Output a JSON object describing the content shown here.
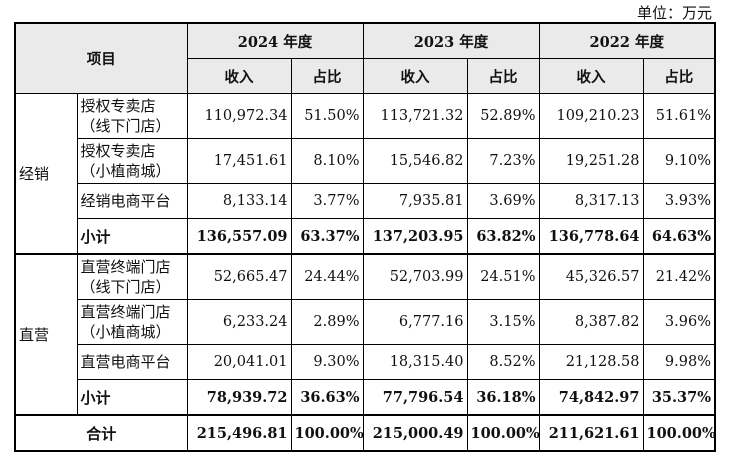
{
  "unit_note": "单位：万元",
  "header": {
    "item_label": "项目",
    "years": [
      "2024 年度",
      "2023 年度",
      "2022 年度"
    ],
    "revenue_label": "收入",
    "share_label": "占比"
  },
  "groups": [
    {
      "name": "经销",
      "rows": [
        {
          "item": "授权专卖店\n（线下门店）",
          "values": [
            "110,972.34",
            "51.50%",
            "113,721.32",
            "52.89%",
            "109,210.23",
            "51.61%"
          ]
        },
        {
          "item": "授权专卖店\n（小植商城）",
          "values": [
            "17,451.61",
            "8.10%",
            "15,546.82",
            "7.23%",
            "19,251.28",
            "9.10%"
          ]
        },
        {
          "item": "经销电商平台",
          "values": [
            "8,133.14",
            "3.77%",
            "7,935.81",
            "3.69%",
            "8,317.13",
            "3.93%"
          ]
        }
      ],
      "subtotal": {
        "label": "小计",
        "values": [
          "136,557.09",
          "63.37%",
          "137,203.95",
          "63.82%",
          "136,778.64",
          "64.63%"
        ]
      }
    },
    {
      "name": "直营",
      "rows": [
        {
          "item": "直营终端门店\n（线下门店）",
          "values": [
            "52,665.47",
            "24.44%",
            "52,703.99",
            "24.51%",
            "45,326.57",
            "21.42%"
          ]
        },
        {
          "item": "直营终端门店\n（小植商城）",
          "values": [
            "6,233.24",
            "2.89%",
            "6,777.16",
            "3.15%",
            "8,387.82",
            "3.96%"
          ]
        },
        {
          "item": "直营电商平台",
          "values": [
            "20,041.01",
            "9.30%",
            "18,315.40",
            "8.52%",
            "21,128.58",
            "9.98%"
          ]
        }
      ],
      "subtotal": {
        "label": "小计",
        "values": [
          "78,939.72",
          "36.63%",
          "77,796.54",
          "36.18%",
          "74,842.97",
          "35.37%"
        ]
      }
    }
  ],
  "total": {
    "label": "合计",
    "values": [
      "215,496.81",
      "100.00%",
      "215,000.49",
      "100.00%",
      "211,621.61",
      "100.00%"
    ]
  }
}
